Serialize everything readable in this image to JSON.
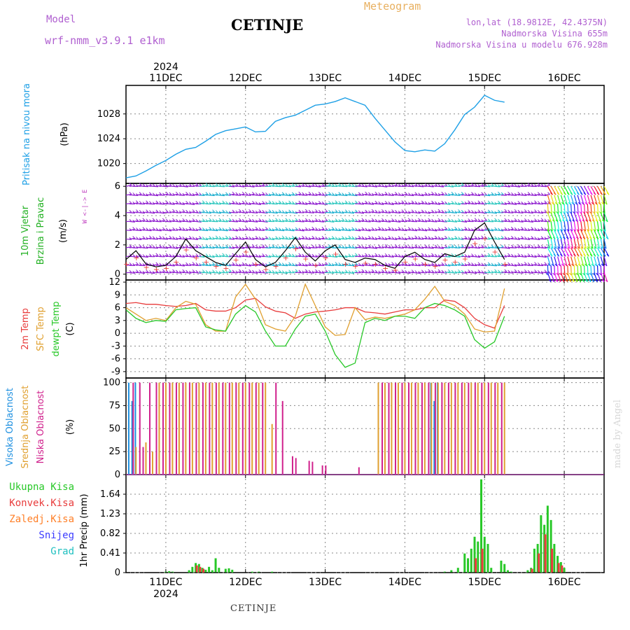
{
  "header": {
    "model_label": "Model",
    "model_name": "wrf-nmm_v3.9.1  e1km",
    "station": "CETINJE",
    "meteogram": "Meteogram",
    "lonlat": "lon,lat (18.9812E, 42.4375N)",
    "elevation": "Nadmorska Visina 655m",
    "model_elevation": "Nadmorska Visina u modelu 676.928m"
  },
  "footer": {
    "station": "CETINJE",
    "credit": "made by Angel"
  },
  "colors": {
    "pressure": "#1ea0e6",
    "temp2m": "#e83c3c",
    "sfc": "#e0a030",
    "dew": "#28c828",
    "cloud_high": "#1e90e0",
    "cloud_mid": "#e0a030",
    "cloud_low": "#d0208c",
    "precip_total": "#28c828",
    "precip_conv": "#e83c3c",
    "precip_frozen": "#ff7f27",
    "precip_snow": "#3c3cff",
    "precip_hail": "#20c0c0",
    "wind_barb": "#9020d0",
    "wind_speed": "#000000"
  },
  "chart_data": [
    {
      "type": "line",
      "panel": "pressure",
      "ylabel_title": "Pritisak na nivou mora",
      "ylabel_unit": "(hPa)",
      "yticks": [
        "1020",
        "1024",
        "1028"
      ],
      "ylim": [
        1016.8,
        1032.6
      ],
      "x_start": "10DEC 12h",
      "x_step_hours": 3,
      "y": [
        1017.7,
        1018.0,
        1018.8,
        1019.7,
        1020.5,
        1021.5,
        1022.3,
        1022.6,
        1023.6,
        1024.7,
        1025.3,
        1025.6,
        1025.9,
        1025.1,
        1025.2,
        1026.8,
        1027.4,
        1027.8,
        1028.6,
        1029.4,
        1029.6,
        1030.0,
        1030.6,
        1030.0,
        1029.4,
        1027.3,
        1025.4,
        1023.5,
        1022.1,
        1021.9,
        1022.2,
        1022.0,
        1023.2,
        1025.4,
        1027.9,
        1029.1,
        1031.0,
        1030.2,
        1029.9
      ]
    },
    {
      "type": "line",
      "panel": "wind",
      "ylabel_title": "10m Vjetar",
      "ylabel_sub": "Brzina i Pravac",
      "ylabel_unit": "(m/s)",
      "compass": "W <-|-> E",
      "yticks": [
        "0",
        "2",
        "4",
        "6"
      ],
      "ylim": [
        -0.4,
        6.2
      ],
      "x_start": "10DEC 12h",
      "x_step_hours": 3,
      "speed": [
        1.0,
        1.6,
        0.7,
        0.5,
        0.6,
        1.2,
        2.4,
        1.6,
        1.2,
        0.8,
        0.6,
        1.4,
        2.2,
        1.0,
        0.5,
        0.8,
        1.6,
        2.5,
        1.5,
        0.9,
        1.6,
        2.0,
        1.0,
        0.8,
        1.1,
        1.0,
        0.6,
        0.4,
        1.2,
        1.5,
        1.0,
        0.8,
        1.4,
        1.2,
        1.5,
        3.0,
        3.5,
        2.2,
        1.0
      ]
    },
    {
      "type": "line",
      "panel": "temperature",
      "ylabel_lines": [
        "2m Temp",
        "SFC Temp",
        "dewpt Temp"
      ],
      "ylabel_unit": "(C)",
      "yticks": [
        "-9",
        "-6",
        "-3",
        "0",
        "3",
        "6",
        "9",
        "12"
      ],
      "ylim": [
        -10.5,
        12.5
      ],
      "x_start": "10DEC 12h",
      "x_step_hours": 3,
      "series": [
        {
          "name": "2m Temp",
          "values": [
            7.0,
            7.2,
            6.8,
            6.8,
            6.5,
            6.3,
            6.5,
            7.0,
            5.5,
            5.2,
            5.2,
            6.0,
            7.8,
            8.2,
            6.2,
            5.2,
            4.8,
            3.5,
            4.5,
            5.0,
            5.2,
            5.5,
            6.0,
            6.0,
            5.0,
            4.8,
            4.5,
            5.0,
            5.5,
            5.5,
            6.0,
            6.0,
            7.8,
            7.5,
            6.0,
            3.5,
            2.0,
            1.2,
            6.5
          ]
        },
        {
          "name": "SFC Temp",
          "values": [
            6.0,
            4.5,
            3.0,
            3.5,
            3.0,
            6.0,
            7.5,
            6.8,
            2.0,
            0.5,
            0.5,
            8.5,
            11.5,
            8.0,
            2.0,
            1.0,
            0.5,
            4.0,
            11.5,
            6.5,
            1.5,
            -0.5,
            -0.3,
            6.0,
            3.2,
            3.8,
            3.5,
            4.0,
            4.5,
            5.5,
            8.0,
            11.0,
            7.5,
            6.5,
            4.5,
            1.0,
            0.3,
            0.5,
            10.5
          ]
        },
        {
          "name": "dewpt Temp",
          "values": [
            5.5,
            3.5,
            2.5,
            3.0,
            2.8,
            5.5,
            5.8,
            6.0,
            1.5,
            0.8,
            0.5,
            4.5,
            6.5,
            5.0,
            0.5,
            -3.0,
            -3.0,
            1.0,
            4.0,
            4.5,
            0.5,
            -5.0,
            -8.0,
            -7.0,
            2.5,
            3.5,
            3.0,
            4.0,
            4.0,
            3.5,
            6.0,
            7.0,
            6.5,
            5.5,
            4.0,
            -1.5,
            -3.5,
            -2.0,
            4.0
          ]
        }
      ]
    },
    {
      "type": "bar",
      "panel": "clouds",
      "ylabel_lines": [
        "Visoka Oblacnost",
        "Srednja Oblacnost",
        "Niska Oblacnost"
      ],
      "ylabel_unit": "(%)",
      "yticks": [
        "0",
        "25",
        "50",
        "75",
        "100"
      ],
      "ylim": [
        0,
        105
      ],
      "x_start": "10DEC 12h",
      "x_step_hours": 1,
      "series": [
        {
          "name": "Visoka Oblacnost",
          "bars": [
            [
              1,
              100
            ],
            [
              2,
              80
            ],
            [
              3,
              100
            ],
            [
              92,
              100
            ],
            [
              93,
              80
            ],
            [
              94,
              100
            ]
          ]
        },
        {
          "name": "Srednja Oblacnost",
          "bars": [
            [
              3,
              30
            ],
            [
              6,
              35
            ],
            [
              8,
              25
            ],
            [
              10,
              100
            ],
            [
              12,
              100
            ],
            [
              14,
              100
            ],
            [
              16,
              100
            ],
            [
              18,
              100
            ],
            [
              20,
              100
            ],
            [
              22,
              100
            ],
            [
              24,
              100
            ],
            [
              26,
              100
            ],
            [
              28,
              100
            ],
            [
              30,
              100
            ],
            [
              32,
              100
            ],
            [
              34,
              100
            ],
            [
              36,
              100
            ],
            [
              38,
              100
            ],
            [
              40,
              100
            ],
            [
              42,
              100
            ],
            [
              44,
              55
            ],
            [
              76,
              100
            ],
            [
              78,
              100
            ],
            [
              80,
              100
            ],
            [
              82,
              100
            ],
            [
              84,
              100
            ],
            [
              86,
              100
            ],
            [
              88,
              100
            ],
            [
              90,
              100
            ],
            [
              92,
              100
            ],
            [
              94,
              100
            ],
            [
              96,
              100
            ],
            [
              98,
              100
            ],
            [
              100,
              100
            ],
            [
              102,
              100
            ],
            [
              104,
              100
            ],
            [
              106,
              100
            ],
            [
              108,
              100
            ],
            [
              110,
              100
            ],
            [
              112,
              100
            ],
            [
              114,
              100
            ]
          ]
        },
        {
          "name": "Niska Oblacnost",
          "bars": [
            [
              2,
              100
            ],
            [
              4,
              100
            ],
            [
              5,
              30
            ],
            [
              7,
              100
            ],
            [
              9,
              100
            ],
            [
              11,
              100
            ],
            [
              13,
              100
            ],
            [
              15,
              100
            ],
            [
              17,
              100
            ],
            [
              19,
              100
            ],
            [
              21,
              100
            ],
            [
              23,
              100
            ],
            [
              25,
              100
            ],
            [
              27,
              100
            ],
            [
              29,
              100
            ],
            [
              31,
              100
            ],
            [
              33,
              100
            ],
            [
              35,
              100
            ],
            [
              37,
              100
            ],
            [
              39,
              100
            ],
            [
              41,
              100
            ],
            [
              45,
              100
            ],
            [
              47,
              80
            ],
            [
              50,
              20
            ],
            [
              51,
              18
            ],
            [
              55,
              15
            ],
            [
              56,
              14
            ],
            [
              59,
              10
            ],
            [
              60,
              10
            ],
            [
              70,
              8
            ],
            [
              77,
              100
            ],
            [
              79,
              100
            ],
            [
              81,
              100
            ],
            [
              83,
              100
            ],
            [
              85,
              100
            ],
            [
              87,
              100
            ],
            [
              89,
              100
            ],
            [
              91,
              100
            ],
            [
              93,
              100
            ],
            [
              95,
              100
            ],
            [
              97,
              100
            ],
            [
              99,
              100
            ],
            [
              101,
              100
            ],
            [
              103,
              100
            ],
            [
              105,
              100
            ],
            [
              107,
              100
            ],
            [
              109,
              100
            ],
            [
              111,
              100
            ],
            [
              113,
              100
            ]
          ]
        }
      ]
    },
    {
      "type": "bar",
      "panel": "precip",
      "ylabel": "1hr Precip (mm)",
      "legend": [
        "Ukupna Kisa",
        "Konvek.Kisa",
        "Zaledj.Kisa",
        "Snijeg",
        "Grad"
      ],
      "yticks": [
        "0",
        "0.41",
        "0.82",
        "1.23",
        "1.64"
      ],
      "ylim": [
        0,
        2.05
      ],
      "x_start": "10DEC 12h",
      "x_step_hours": 1,
      "series": [
        {
          "name": "Ukupna Kisa",
          "bars": [
            [
              12,
              0.02
            ],
            [
              13,
              0.03
            ],
            [
              14,
              0.02
            ],
            [
              19,
              0.05
            ],
            [
              20,
              0.12
            ],
            [
              21,
              0.2
            ],
            [
              22,
              0.18
            ],
            [
              23,
              0.1
            ],
            [
              24,
              0.06
            ],
            [
              25,
              0.12
            ],
            [
              26,
              0.05
            ],
            [
              27,
              0.3
            ],
            [
              28,
              0.1
            ],
            [
              30,
              0.08
            ],
            [
              31,
              0.09
            ],
            [
              32,
              0.06
            ],
            [
              38,
              0.02
            ],
            [
              40,
              0.02
            ],
            [
              44,
              0.02
            ],
            [
              96,
              0.02
            ],
            [
              98,
              0.05
            ],
            [
              100,
              0.1
            ],
            [
              102,
              0.4
            ],
            [
              103,
              0.3
            ],
            [
              104,
              0.5
            ],
            [
              105,
              0.75
            ],
            [
              106,
              0.65
            ],
            [
              107,
              1.95
            ],
            [
              108,
              0.75
            ],
            [
              109,
              0.6
            ],
            [
              110,
              0.1
            ],
            [
              113,
              0.25
            ],
            [
              114,
              0.18
            ],
            [
              115,
              0.05
            ],
            [
              116,
              0.02
            ],
            [
              121,
              0.05
            ],
            [
              122,
              0.1
            ],
            [
              123,
              0.5
            ],
            [
              124,
              0.6
            ],
            [
              125,
              1.2
            ],
            [
              126,
              1.0
            ],
            [
              127,
              1.4
            ],
            [
              128,
              1.1
            ],
            [
              129,
              0.6
            ],
            [
              130,
              0.35
            ],
            [
              131,
              0.22
            ],
            [
              132,
              0.1
            ]
          ]
        },
        {
          "name": "Konvek.Kisa",
          "bars": [
            [
              21,
              0.15
            ],
            [
              22,
              0.12
            ],
            [
              23,
              0.08
            ],
            [
              105,
              0.3
            ],
            [
              107,
              0.5
            ],
            [
              122,
              0.08
            ],
            [
              124,
              0.4
            ],
            [
              126,
              0.8
            ],
            [
              128,
              0.5
            ],
            [
              130,
              0.2
            ],
            [
              131,
              0.15
            ]
          ]
        }
      ]
    }
  ],
  "xaxis": {
    "top_year": "2024",
    "bottom_year": "2024",
    "days": [
      {
        "label": "11DEC",
        "hour": 12
      },
      {
        "label": "12DEC",
        "hour": 36
      },
      {
        "label": "13DEC",
        "hour": 60
      },
      {
        "label": "14DEC",
        "hour": 84
      },
      {
        "label": "15DEC",
        "hour": 108
      },
      {
        "label": "16DEC",
        "hour": 132
      }
    ],
    "total_hours": 144
  }
}
